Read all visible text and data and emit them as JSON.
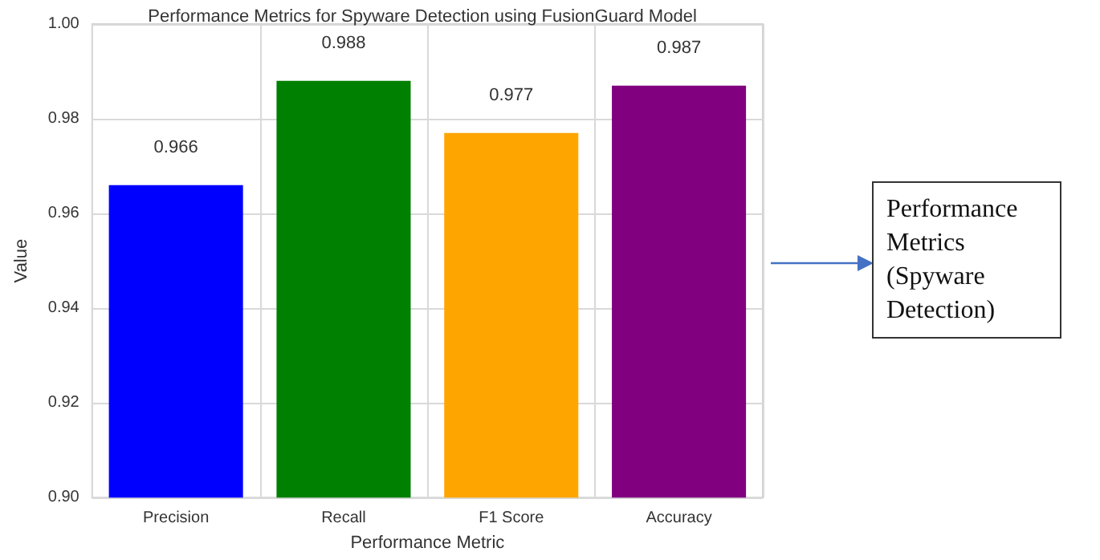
{
  "chart_data": {
    "type": "bar",
    "title": "Performance Metrics for Spyware Detection using FusionGuard Model",
    "xlabel": "Performance Metric",
    "ylabel": "Value",
    "categories": [
      "Precision",
      "Recall",
      "F1 Score",
      "Accuracy"
    ],
    "values": [
      0.966,
      0.988,
      0.977,
      0.987
    ],
    "colors": [
      "#0000ff",
      "#008000",
      "#ffa500",
      "#800080"
    ],
    "ylim": [
      0.9,
      1.0
    ],
    "yticks": [
      {
        "value": 0.9,
        "label": "0.90"
      },
      0.92,
      0.94,
      0.96,
      0.98,
      {
        "value": 1.0,
        "label": "1.00"
      }
    ],
    "value_labels": [
      "0.966",
      "0.988",
      "0.977",
      "0.987"
    ],
    "grid": true,
    "annotations": [
      "Performance Metrics (Spyware Detection)"
    ]
  }
}
